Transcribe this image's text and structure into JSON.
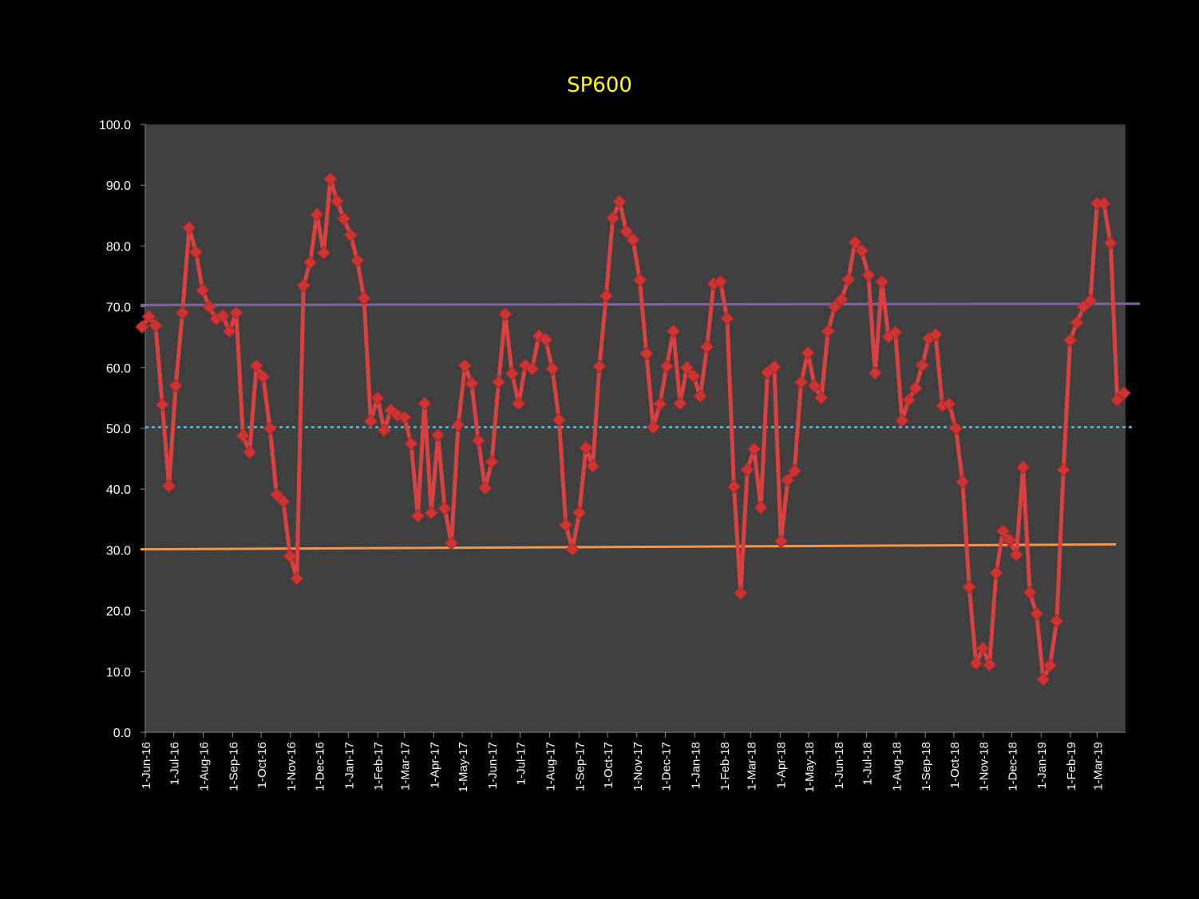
{
  "chart_data": {
    "type": "line",
    "title": "SP600",
    "ylim": [
      0,
      100
    ],
    "y_ticks": [
      "0.0",
      "10.0",
      "20.0",
      "30.0",
      "40.0",
      "50.0",
      "60.0",
      "70.0",
      "80.0",
      "90.0",
      "100.0"
    ],
    "x_ticks": [
      "1-Jun-16",
      "1-Jul-16",
      "1-Aug-16",
      "1-Sep-16",
      "1-Oct-16",
      "1-Nov-16",
      "1-Dec-16",
      "1-Jan-17",
      "1-Feb-17",
      "1-Mar-17",
      "1-Apr-17",
      "1-May-17",
      "1-Jun-17",
      "1-Jul-17",
      "1-Aug-17",
      "1-Sep-17",
      "1-Oct-17",
      "1-Nov-17",
      "1-Dec-17",
      "1-Jan-18",
      "1-Feb-18",
      "1-Mar-18",
      "1-Apr-18",
      "1-May-18",
      "1-Jun-18",
      "1-Jul-18",
      "1-Aug-18",
      "1-Sep-18",
      "1-Oct-18",
      "1-Nov-18",
      "1-Dec-18",
      "1-Jan-19",
      "1-Feb-19",
      "1-Mar-19"
    ],
    "x_start": "2016-06-01",
    "x_end": "2019-03-31",
    "grid": false,
    "legend": "none",
    "colors": {
      "page_bg": "#000000",
      "plot_bg": "#3f3f3f",
      "series": "#d94040",
      "marker": "#cc3333",
      "upper_line": "#8064a2",
      "lower_line": "#f79646",
      "mid_line": "#4bacc6",
      "title": "#ffff00",
      "axis_text": "#ffffff"
    },
    "series": [
      {
        "values": [
          66.7,
          68.4,
          66.9,
          53.9,
          40.5,
          57.0,
          69.0,
          83.0,
          79.0,
          72.7,
          70.0,
          68.0,
          68.5,
          66.0,
          69.0,
          48.8,
          46.1,
          60.3,
          58.5,
          50.0,
          39.1,
          38.0,
          29.0,
          25.3,
          73.5,
          77.3,
          85.2,
          78.9,
          91.0,
          87.4,
          84.5,
          81.8,
          77.6,
          71.4,
          51.2,
          55.0,
          49.7,
          53.0,
          52.1,
          51.8,
          47.5,
          35.6,
          54.1,
          36.1,
          48.9,
          36.8,
          31.1,
          50.5,
          60.3,
          57.4,
          48.0,
          40.2,
          44.5,
          57.6,
          68.8,
          59.0,
          54.1,
          60.4,
          59.8,
          65.2,
          64.6,
          59.8,
          51.4,
          34.1,
          30.1,
          36.1,
          46.8,
          43.8,
          60.2,
          71.8,
          84.6,
          87.3,
          82.4,
          81.0,
          74.4,
          62.3,
          50.2,
          54.0,
          60.2,
          66.0,
          54.1,
          60.0,
          58.6,
          55.3,
          63.4,
          73.8,
          74.1,
          68.1,
          40.4,
          22.9,
          43.2,
          46.6,
          37.0,
          59.2,
          60.1,
          31.4,
          41.5,
          43.0,
          57.6,
          62.4,
          57.0,
          55.0,
          66.0,
          70.0,
          71.2,
          74.5,
          80.6,
          79.2,
          75.2,
          59.1,
          74.1,
          65.1,
          65.8,
          51.3,
          54.7,
          56.6,
          60.4,
          64.8,
          65.4,
          53.7,
          54.0,
          50.0,
          41.2,
          23.9,
          11.3,
          13.8,
          11.1,
          26.2,
          33.1,
          31.6,
          29.2,
          43.6,
          23.0,
          19.5,
          8.7,
          11.0,
          18.3,
          43.2,
          64.5,
          67.4,
          70.0,
          71.0,
          87.0,
          87.0,
          80.5,
          54.7,
          55.8
        ]
      },
      {
        "values": [
          70.3,
          70.5
        ]
      },
      {
        "values": [
          30.1,
          30.9
        ]
      },
      {
        "values": [
          50.2,
          50.2
        ]
      }
    ]
  }
}
